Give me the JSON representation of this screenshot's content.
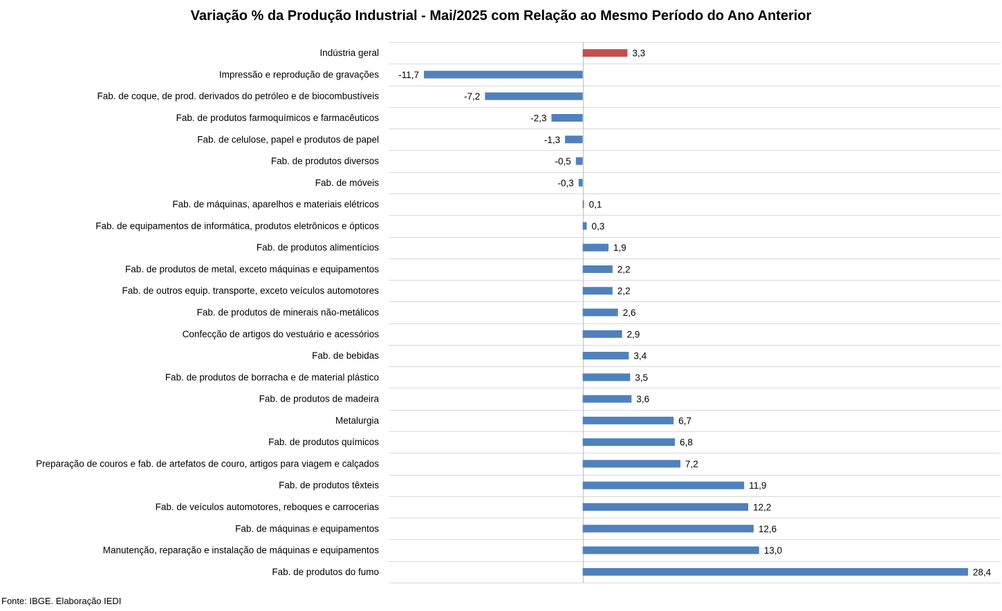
{
  "chart_data": {
    "type": "bar",
    "orientation": "horizontal",
    "title": "Variação % da Produção Industrial - Mai/2025 com Relação ao Mesmo Período do Ano Anterior",
    "categories": [
      "Indústria geral",
      "Impressão e reprodução de gravações",
      "Fab. de coque, de prod. derivados do petróleo e de biocombustíveis",
      "Fab. de produtos farmoquímicos e farmacêuticos",
      "Fab. de celulose, papel e produtos de papel",
      "Fab. de produtos diversos",
      "Fab. de móveis",
      "Fab. de máquinas, aparelhos e materiais elétricos",
      "Fab. de equipamentos de informática, produtos eletrônicos e ópticos",
      "Fab. de produtos alimentícios",
      "Fab. de produtos de metal, exceto máquinas e equipamentos",
      "Fab. de outros equip. transporte, exceto veículos automotores",
      "Fab. de produtos de minerais não-metálicos",
      "Confecção de artigos do vestuário e acessórios",
      "Fab. de bebidas",
      "Fab. de produtos de borracha e de material plástico",
      "Fab. de produtos de madeira",
      "Metalurgia",
      "Fab. de produtos químicos",
      "Preparação de couros e fab. de artefatos de couro, artigos para viagem e calçados",
      "Fab. de produtos têxteis",
      "Fab. de veículos automotores, reboques e carrocerias",
      "Fab. de máquinas e equipamentos",
      "Manutenção, reparação e instalação de máquinas e equipamentos",
      "Fab. de produtos do fumo"
    ],
    "values": [
      3.3,
      -11.7,
      -7.2,
      -2.3,
      -1.3,
      -0.5,
      -0.3,
      0.1,
      0.3,
      1.9,
      2.2,
      2.2,
      2.6,
      2.9,
      3.4,
      3.5,
      3.6,
      6.7,
      6.8,
      7.2,
      11.9,
      12.2,
      12.6,
      13.0,
      28.4
    ],
    "value_labels": [
      "3,3",
      "-11,7",
      "-7,2",
      "-2,3",
      "-1,3",
      "-0,5",
      "-0,3",
      "0,1",
      "0,3",
      "1,9",
      "2,2",
      "2,2",
      "2,6",
      "2,9",
      "3,4",
      "3,5",
      "3,6",
      "6,7",
      "6,8",
      "7,2",
      "11,9",
      "12,2",
      "12,6",
      "13,0",
      "28,4"
    ],
    "xlim": [
      -14.3,
      30.8
    ],
    "grid": true,
    "legend": "none",
    "colors": {
      "highlight": "#C0504D",
      "bars": "#4F81BD",
      "gridline": "#D9D9D9",
      "axis": "#BFBFBF"
    },
    "highlight_category": "Indústria geral"
  },
  "source": "Fonte: IBGE. Elaboração IEDI"
}
